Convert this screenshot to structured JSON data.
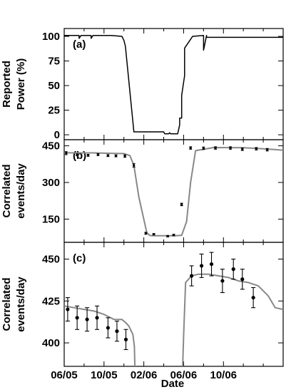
{
  "chart_data": [
    {
      "type": "line",
      "panel": "(a)",
      "ylabel": [
        "Reported",
        "Power (%)"
      ],
      "ylim": [
        -5,
        108
      ],
      "yticks": [
        0,
        25,
        50,
        75,
        100
      ],
      "xlim_months": [
        0,
        22
      ],
      "series": [
        {
          "color": "#000000",
          "x": [
            0,
            1.5,
            1.5,
            1.7,
            2.7,
            2.7,
            2.9,
            4.7,
            5.8,
            6.0,
            6.15,
            7.0,
            7.1,
            10.0,
            10.05,
            10.1,
            10.15,
            10.3,
            10.35,
            10.45,
            10.5,
            10.6,
            10.7,
            11.1,
            11.4,
            11.6,
            11.6,
            11.8,
            11.8,
            12.1,
            12.1,
            12.7,
            12.9,
            14.0,
            14.0,
            14.3,
            14.3,
            22.0
          ],
          "y": [
            101,
            101,
            98,
            101,
            101,
            98,
            101,
            101,
            100,
            96,
            90,
            3,
            3,
            3,
            2,
            1,
            1,
            1,
            1,
            1,
            1,
            2,
            1,
            1,
            1,
            10,
            17,
            17,
            40,
            60,
            88,
            97,
            100,
            101,
            86,
            101,
            99,
            99
          ]
        }
      ]
    },
    {
      "type": "line",
      "panel": "(b)",
      "ylabel": [
        "Correlated",
        "events/day"
      ],
      "ylim": [
        55,
        475
      ],
      "yticks": [
        150,
        300,
        450
      ],
      "xlim_months": [
        0,
        22
      ],
      "model": {
        "color": "#888888",
        "x": [
          0,
          1,
          2,
          3,
          4,
          5,
          6,
          6.6,
          7.0,
          7.5,
          8.3,
          8.6,
          9.2,
          10.5,
          11.2,
          11.8,
          12.3,
          12.7,
          13.2,
          15,
          18,
          20,
          22
        ],
        "y": [
          422,
          421,
          421,
          421,
          420,
          419,
          418,
          410,
          370,
          240,
          95,
          83,
          82,
          82,
          82,
          84,
          140,
          300,
          430,
          443,
          442,
          438,
          432
        ]
      },
      "points": {
        "x": [
          0.2,
          1.3,
          2.4,
          3.4,
          4.4,
          5.2,
          6.1,
          7.0,
          8.2,
          9.0,
          10.4,
          11.0,
          11.8,
          12.7,
          14.0,
          15.2,
          16.7,
          17.9,
          19.3,
          20.4
        ],
        "y": [
          420,
          413,
          411,
          414,
          410,
          409,
          408,
          370,
          92,
          88,
          80,
          85,
          210,
          441,
          440,
          441,
          441,
          436,
          438,
          434
        ],
        "err": [
          6,
          4,
          4,
          4,
          4,
          4,
          5,
          7,
          4,
          3,
          3,
          3,
          5,
          5,
          5,
          5,
          5,
          5,
          5,
          5
        ]
      }
    },
    {
      "type": "scatter",
      "panel": "(c)",
      "xlabel": "Date",
      "ylabel": [
        "Correlated",
        "events/day"
      ],
      "ylim": [
        386,
        460
      ],
      "yticks": [
        400,
        425,
        450
      ],
      "xlim_months": [
        0,
        22
      ],
      "xticks": [
        0,
        4,
        8,
        12,
        16
      ],
      "xtick_labels": [
        "06/05",
        "10/05",
        "02/06",
        "06/06",
        "10/06"
      ],
      "model": {
        "segments": [
          {
            "x": [
              0,
              1,
              2,
              3,
              4,
              5,
              5.8,
              6.2,
              6.5,
              6.9,
              7.05,
              7.1
            ],
            "y": [
              422,
              421,
              420,
              419,
              417,
              414,
              414,
              412,
              410,
              405,
              398,
              386
            ]
          },
          {
            "x": [
              11.9,
              12.0,
              12.2,
              12.8,
              13.5,
              14.5,
              15.5,
              16.5,
              17.5,
              18.5,
              19.5,
              20.5,
              21.2,
              22.0
            ],
            "y": [
              386,
              405,
              436,
              440,
              441,
              441,
              440,
              439,
              437,
              436,
              434,
              428,
              421,
              420
            ]
          }
        ],
        "color": "#888888"
      },
      "points": {
        "x": [
          0.35,
          1.3,
          2.3,
          3.3,
          4.4,
          5.3,
          6.2,
          12.8,
          13.8,
          14.8,
          15.9,
          17.0,
          17.9,
          19.0
        ],
        "y": [
          420,
          415,
          414,
          415,
          409,
          407,
          402,
          440,
          446,
          447,
          437,
          444,
          438,
          427
        ],
        "err": [
          7,
          7,
          7,
          7,
          6,
          6,
          6,
          6,
          7,
          7,
          7,
          6,
          6,
          6
        ]
      }
    }
  ]
}
